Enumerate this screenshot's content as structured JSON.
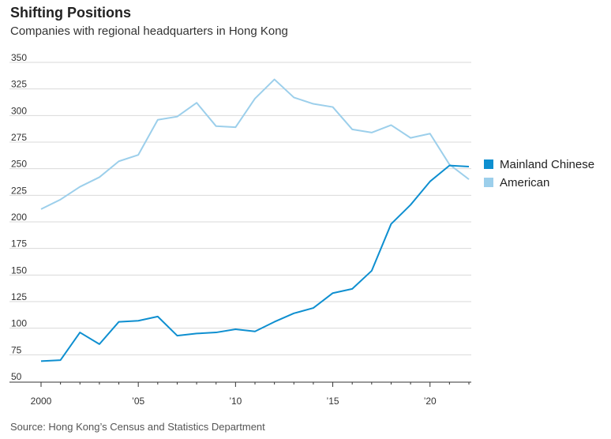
{
  "chart_data": {
    "type": "line",
    "title": "Shifting Positions",
    "subtitle": "Companies with regional headquarters in Hong Kong",
    "source": "Source: Hong Kong’s Census and Statistics Department",
    "xlabel": "",
    "ylabel": "",
    "x": [
      2000,
      2001,
      2002,
      2003,
      2004,
      2005,
      2006,
      2007,
      2008,
      2009,
      2010,
      2011,
      2012,
      2013,
      2014,
      2015,
      2016,
      2017,
      2018,
      2019,
      2020,
      2021,
      2022
    ],
    "xlim": [
      2000,
      2022
    ],
    "ylim": [
      50,
      350
    ],
    "yticks": [
      50,
      75,
      100,
      125,
      150,
      175,
      200,
      225,
      250,
      275,
      300,
      325,
      350
    ],
    "xticks": [
      {
        "value": 2000,
        "label": "2000"
      },
      {
        "value": 2005,
        "label": "’05"
      },
      {
        "value": 2010,
        "label": "’10"
      },
      {
        "value": 2015,
        "label": "’15"
      },
      {
        "value": 2020,
        "label": "’20"
      }
    ],
    "grid": true,
    "legend": "right",
    "series": [
      {
        "name": "Mainland Chinese",
        "color": "#0e8fd0",
        "values": [
          69,
          70,
          96,
          85,
          106,
          107,
          111,
          93,
          95,
          96,
          99,
          97,
          106,
          114,
          119,
          133,
          137,
          154,
          198,
          216,
          238,
          253,
          252
        ]
      },
      {
        "name": "American",
        "color": "#9ccfeb",
        "values": [
          212,
          221,
          233,
          242,
          257,
          263,
          296,
          299,
          312,
          290,
          289,
          316,
          334,
          317,
          311,
          308,
          287,
          284,
          291,
          279,
          283,
          254,
          240
        ]
      }
    ]
  }
}
